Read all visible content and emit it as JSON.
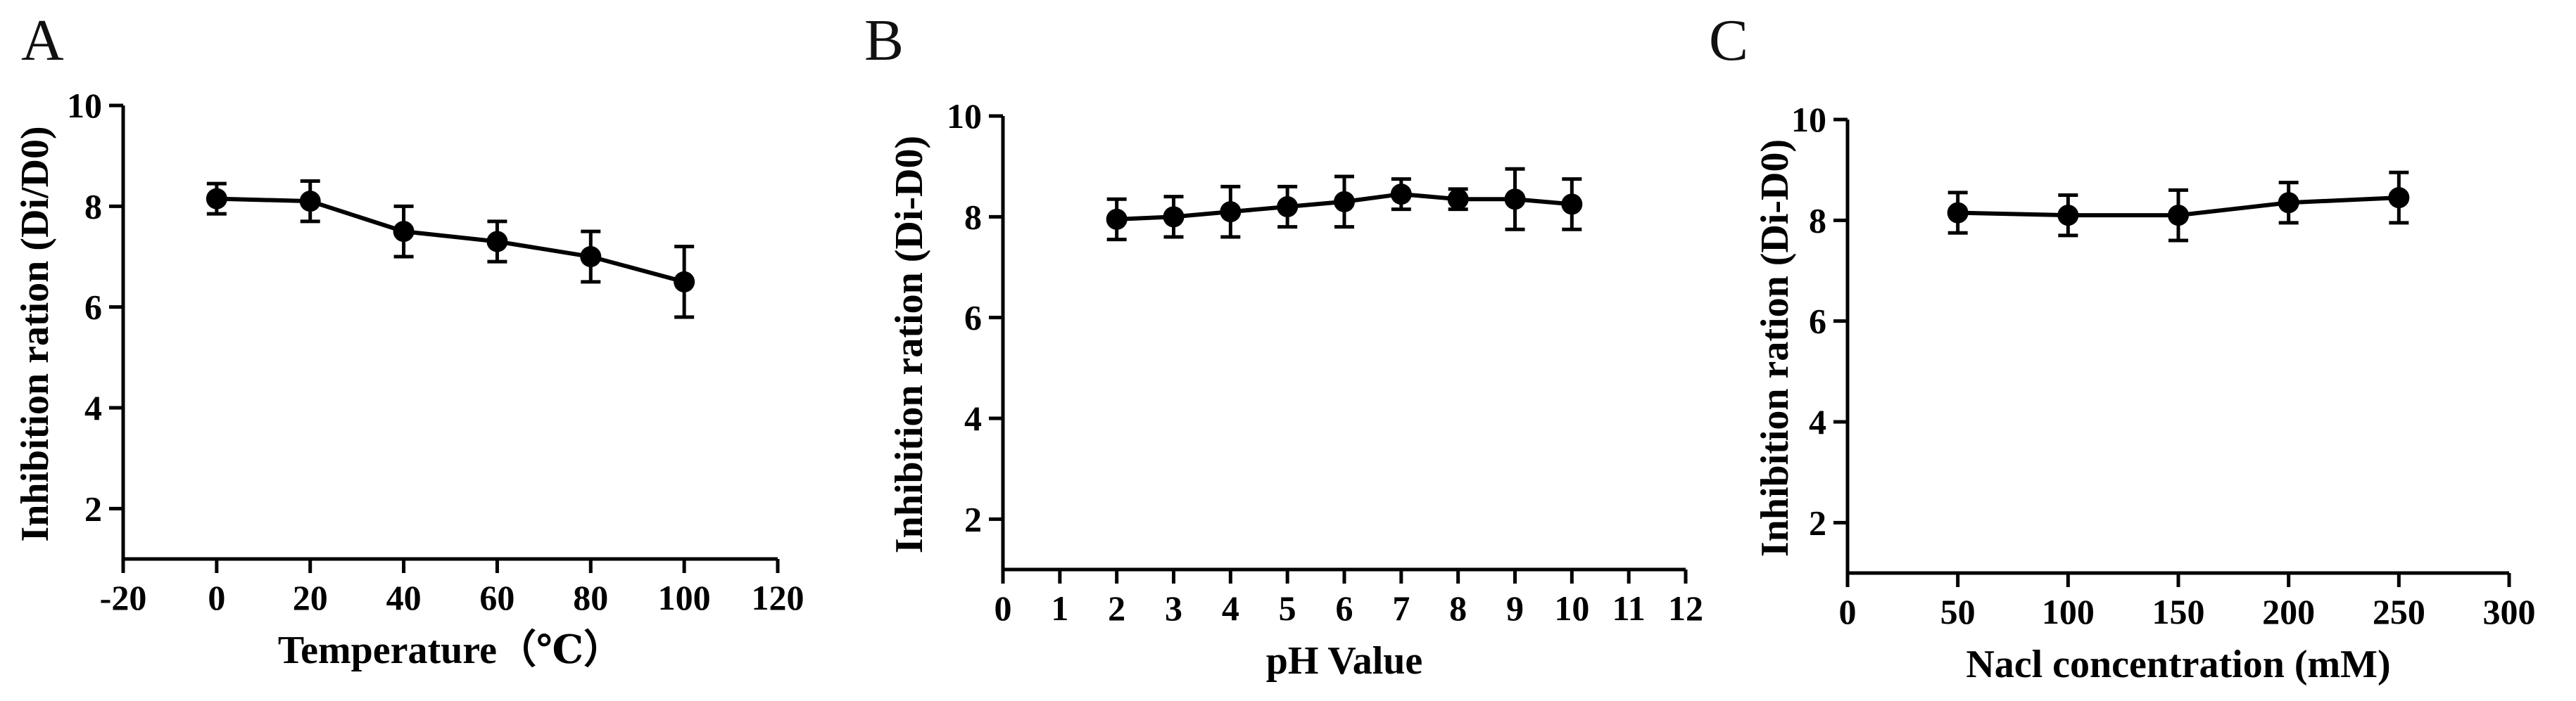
{
  "chart_data": [
    {
      "panel": "A",
      "type": "line",
      "xlabel": "Temperature（℃）",
      "ylabel": "Inhibition ration (Di/D0)",
      "xlim": [
        -20,
        120
      ],
      "ylim": [
        1,
        10
      ],
      "xticks": [
        "-20",
        "0",
        "20",
        "40",
        "60",
        "80",
        "100",
        "120"
      ],
      "yticks": [
        "2",
        "4",
        "6",
        "8",
        "10"
      ],
      "x": [
        0,
        20,
        40,
        60,
        80,
        100
      ],
      "y": [
        8.15,
        8.1,
        7.5,
        7.3,
        7.0,
        6.5
      ],
      "error": [
        0.3,
        0.4,
        0.5,
        0.4,
        0.5,
        0.7
      ]
    },
    {
      "panel": "B",
      "type": "line",
      "xlabel": "pH Value",
      "ylabel": "Inhibition ration (Di-D0)",
      "xlim": [
        0,
        12
      ],
      "ylim": [
        1,
        10
      ],
      "xticks": [
        "0",
        "1",
        "2",
        "3",
        "4",
        "5",
        "6",
        "7",
        "8",
        "9",
        "10",
        "11",
        "12"
      ],
      "yticks": [
        "2",
        "4",
        "6",
        "8",
        "10"
      ],
      "x": [
        2,
        3,
        4,
        5,
        6,
        7,
        8,
        9,
        10
      ],
      "y": [
        7.95,
        8.0,
        8.1,
        8.2,
        8.3,
        8.45,
        8.35,
        8.35,
        8.25
      ],
      "error": [
        0.4,
        0.4,
        0.5,
        0.4,
        0.5,
        0.3,
        0.2,
        0.6,
        0.5
      ]
    },
    {
      "panel": "C",
      "type": "line",
      "xlabel": "Nacl concentration (mM)",
      "ylabel": "Inhibition ration (Di-D0)",
      "xlim": [
        0,
        300
      ],
      "ylim": [
        1,
        10
      ],
      "xticks": [
        "0",
        "50",
        "100",
        "150",
        "200",
        "250",
        "300"
      ],
      "yticks": [
        "2",
        "4",
        "6",
        "8",
        "10"
      ],
      "x": [
        50,
        100,
        150,
        200,
        250
      ],
      "y": [
        8.15,
        8.1,
        8.1,
        8.35,
        8.45
      ],
      "error": [
        0.4,
        0.4,
        0.5,
        0.4,
        0.5
      ]
    }
  ]
}
